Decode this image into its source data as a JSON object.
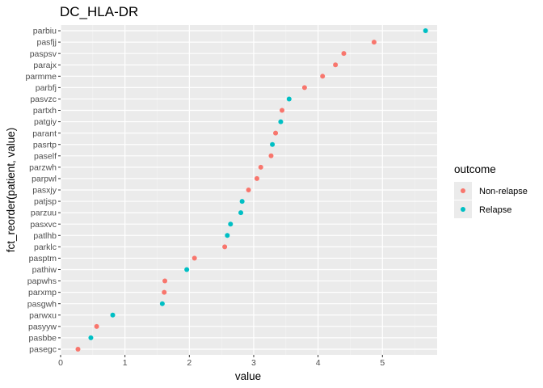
{
  "chart_data": {
    "type": "scatter",
    "title": "DC_HLA-DR",
    "xlabel": "value",
    "ylabel": "fct_reorder(patient, value)",
    "xlim": [
      0,
      5.85
    ],
    "xticks": [
      0,
      1,
      2,
      3,
      4,
      5
    ],
    "grid": true,
    "legend": {
      "title": "outcome",
      "position": "right",
      "entries": [
        {
          "name": "Non-relapse",
          "color": "#F8766D"
        },
        {
          "name": "Relapse",
          "color": "#00BFC4"
        }
      ]
    },
    "categories": [
      "parbiu",
      "pasfjj",
      "paspsv",
      "parajx",
      "parmme",
      "parbfj",
      "pasvzc",
      "partxh",
      "patgiy",
      "parant",
      "pasrtp",
      "paself",
      "parzwh",
      "parpwl",
      "pasxjy",
      "patjsp",
      "parzuu",
      "pasxvc",
      "patlhb",
      "parklc",
      "pasptm",
      "pathiw",
      "papwhs",
      "parxmp",
      "pasgwh",
      "parwxu",
      "pasyyw",
      "pasbbe",
      "pasegc"
    ],
    "points": [
      {
        "patient": "parbiu",
        "value": 5.67,
        "outcome": "Relapse"
      },
      {
        "patient": "pasfjj",
        "value": 4.87,
        "outcome": "Non-relapse"
      },
      {
        "patient": "paspsv",
        "value": 4.4,
        "outcome": "Non-relapse"
      },
      {
        "patient": "parajx",
        "value": 4.27,
        "outcome": "Non-relapse"
      },
      {
        "patient": "parmme",
        "value": 4.07,
        "outcome": "Non-relapse"
      },
      {
        "patient": "parbfj",
        "value": 3.79,
        "outcome": "Non-relapse"
      },
      {
        "patient": "pasvzc",
        "value": 3.55,
        "outcome": "Relapse"
      },
      {
        "patient": "partxh",
        "value": 3.44,
        "outcome": "Non-relapse"
      },
      {
        "patient": "patgiy",
        "value": 3.42,
        "outcome": "Relapse"
      },
      {
        "patient": "parant",
        "value": 3.34,
        "outcome": "Non-relapse"
      },
      {
        "patient": "pasrtp",
        "value": 3.29,
        "outcome": "Relapse"
      },
      {
        "patient": "paself",
        "value": 3.27,
        "outcome": "Non-relapse"
      },
      {
        "patient": "parzwh",
        "value": 3.11,
        "outcome": "Non-relapse"
      },
      {
        "patient": "parpwl",
        "value": 3.05,
        "outcome": "Non-relapse"
      },
      {
        "patient": "pasxjy",
        "value": 2.92,
        "outcome": "Non-relapse"
      },
      {
        "patient": "patjsp",
        "value": 2.82,
        "outcome": "Relapse"
      },
      {
        "patient": "parzuu",
        "value": 2.8,
        "outcome": "Relapse"
      },
      {
        "patient": "pasxvc",
        "value": 2.64,
        "outcome": "Relapse"
      },
      {
        "patient": "patlhb",
        "value": 2.59,
        "outcome": "Relapse"
      },
      {
        "patient": "parklc",
        "value": 2.55,
        "outcome": "Non-relapse"
      },
      {
        "patient": "pasptm",
        "value": 2.08,
        "outcome": "Non-relapse"
      },
      {
        "patient": "pathiw",
        "value": 1.96,
        "outcome": "Relapse"
      },
      {
        "patient": "papwhs",
        "value": 1.62,
        "outcome": "Non-relapse"
      },
      {
        "patient": "parxmp",
        "value": 1.61,
        "outcome": "Non-relapse"
      },
      {
        "patient": "pasgwh",
        "value": 1.58,
        "outcome": "Relapse"
      },
      {
        "patient": "parwxu",
        "value": 0.81,
        "outcome": "Relapse"
      },
      {
        "patient": "pasyyw",
        "value": 0.56,
        "outcome": "Non-relapse"
      },
      {
        "patient": "pasbbe",
        "value": 0.47,
        "outcome": "Relapse"
      },
      {
        "patient": "pasegc",
        "value": 0.27,
        "outcome": "Non-relapse"
      }
    ]
  }
}
